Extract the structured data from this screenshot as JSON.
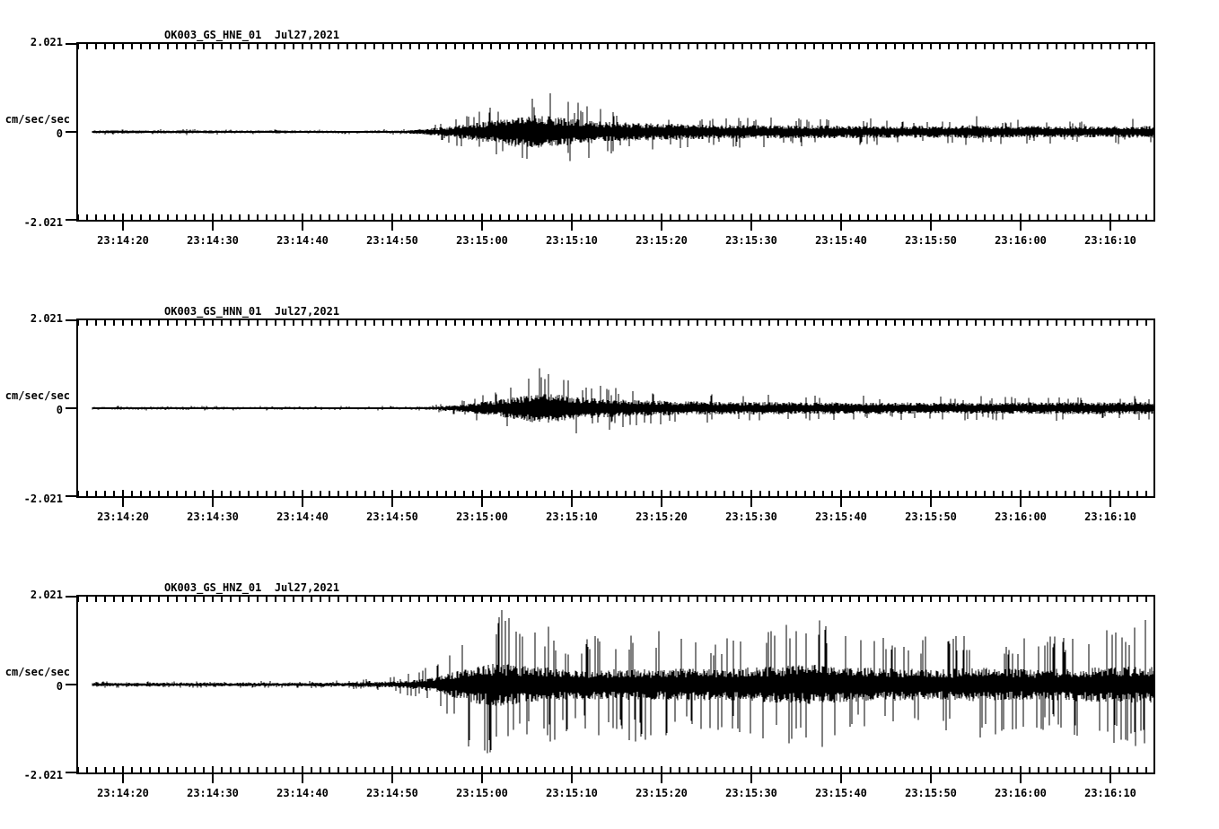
{
  "figure": {
    "background_color": "#ffffff",
    "trace_color": "#000000",
    "axis_color": "#000000"
  },
  "chart_data": [
    {
      "type": "line",
      "title": "OK003_GS_HNE_01  Jul27,2021",
      "station": "OK003",
      "network": "GS",
      "channel": "HNE",
      "location": "01",
      "date_label": "Jul27,2021",
      "ylabel": "cm/sec/sec",
      "ylim": [
        -2.021,
        2.021
      ],
      "ytick_labels": {
        "max": "2.021",
        "zero": "0",
        "min": "-2.021"
      },
      "xtick_labels": [
        "23:14:20",
        "23:14:30",
        "23:14:40",
        "23:14:50",
        "23:15:00",
        "23:15:10",
        "23:15:20",
        "23:15:30",
        "23:15:40",
        "23:15:50",
        "23:16:00",
        "23:16:10"
      ],
      "x_seconds_per_major_tick": 10,
      "grid": false,
      "legend": "none",
      "seed": 7,
      "spike_density": 0.07,
      "envelope_note": "points = [seconds after 23:14:15, typical half-amplitude cm/sec/sec, peak half-amplitude cm/sec/sec]",
      "envelope_points": [
        [
          1.6,
          0.03,
          0.07
        ],
        [
          15,
          0.03,
          0.07
        ],
        [
          22,
          0.028,
          0.06
        ],
        [
          28,
          0.024,
          0.05
        ],
        [
          33,
          0.025,
          0.06
        ],
        [
          36,
          0.03,
          0.07
        ],
        [
          38,
          0.05,
          0.11
        ],
        [
          40,
          0.08,
          0.18
        ],
        [
          42,
          0.12,
          0.3
        ],
        [
          44,
          0.17,
          0.45
        ],
        [
          46,
          0.22,
          0.55
        ],
        [
          48,
          0.27,
          0.72
        ],
        [
          50,
          0.32,
          0.88
        ],
        [
          51.5,
          0.34,
          0.97
        ],
        [
          53,
          0.3,
          0.85
        ],
        [
          55,
          0.26,
          0.7
        ],
        [
          57,
          0.23,
          0.6
        ],
        [
          59,
          0.2,
          0.52
        ],
        [
          62,
          0.18,
          0.46
        ],
        [
          66,
          0.16,
          0.4
        ],
        [
          72,
          0.14,
          0.36
        ],
        [
          80,
          0.13,
          0.33
        ],
        [
          90,
          0.12,
          0.3
        ],
        [
          98,
          0.12,
          0.3
        ],
        [
          100,
          0.14,
          0.38
        ],
        [
          102,
          0.12,
          0.3
        ],
        [
          108,
          0.11,
          0.27
        ],
        [
          114,
          0.11,
          0.28
        ],
        [
          120,
          0.12,
          0.3
        ]
      ]
    },
    {
      "type": "line",
      "title": "OK003_GS_HNN_01  Jul27,2021",
      "station": "OK003",
      "network": "GS",
      "channel": "HNN",
      "location": "01",
      "date_label": "Jul27,2021",
      "ylabel": "cm/sec/sec",
      "ylim": [
        -2.021,
        2.021
      ],
      "ytick_labels": {
        "max": "2.021",
        "zero": "0",
        "min": "-2.021"
      },
      "xtick_labels": [
        "23:14:20",
        "23:14:30",
        "23:14:40",
        "23:14:50",
        "23:15:00",
        "23:15:10",
        "23:15:20",
        "23:15:30",
        "23:15:40",
        "23:15:50",
        "23:16:00",
        "23:16:10"
      ],
      "x_seconds_per_major_tick": 10,
      "grid": false,
      "legend": "none",
      "seed": 13,
      "spike_density": 0.07,
      "envelope_note": "points = [seconds after 23:14:15, typical half-amplitude cm/sec/sec, peak half-amplitude cm/sec/sec]",
      "envelope_points": [
        [
          1.6,
          0.025,
          0.055
        ],
        [
          15,
          0.025,
          0.055
        ],
        [
          28,
          0.022,
          0.05
        ],
        [
          36,
          0.02,
          0.05
        ],
        [
          39,
          0.03,
          0.08
        ],
        [
          42,
          0.06,
          0.15
        ],
        [
          44,
          0.1,
          0.26
        ],
        [
          46,
          0.15,
          0.4
        ],
        [
          48,
          0.2,
          0.55
        ],
        [
          50,
          0.26,
          0.85
        ],
        [
          51.5,
          0.3,
          1.08
        ],
        [
          53,
          0.28,
          0.92
        ],
        [
          55,
          0.24,
          0.72
        ],
        [
          57,
          0.2,
          0.56
        ],
        [
          60,
          0.17,
          0.46
        ],
        [
          64,
          0.15,
          0.4
        ],
        [
          70,
          0.13,
          0.34
        ],
        [
          80,
          0.12,
          0.3
        ],
        [
          92,
          0.11,
          0.27
        ],
        [
          102,
          0.11,
          0.28
        ],
        [
          110,
          0.12,
          0.3
        ],
        [
          120,
          0.12,
          0.31
        ]
      ]
    },
    {
      "type": "line",
      "title": "OK003_GS_HNZ_01  Jul27,2021",
      "station": "OK003",
      "network": "GS",
      "channel": "HNZ",
      "location": "01",
      "date_label": "Jul27,2021",
      "ylabel": "cm/sec/sec",
      "ylim": [
        -2.021,
        2.021
      ],
      "ytick_labels": {
        "max": "2.021",
        "zero": "0",
        "min": "-2.021"
      },
      "xtick_labels": [
        "23:14:20",
        "23:14:30",
        "23:14:40",
        "23:14:50",
        "23:15:00",
        "23:15:10",
        "23:15:20",
        "23:15:30",
        "23:15:40",
        "23:15:50",
        "23:16:00",
        "23:16:10"
      ],
      "x_seconds_per_major_tick": 10,
      "grid": false,
      "legend": "none",
      "seed": 42,
      "spike_density": 0.13,
      "envelope_note": "points = [seconds after 23:14:15, typical half-amplitude cm/sec/sec, peak half-amplitude cm/sec/sec]",
      "envelope_points": [
        [
          1.6,
          0.035,
          0.075
        ],
        [
          15,
          0.035,
          0.075
        ],
        [
          25,
          0.035,
          0.08
        ],
        [
          30,
          0.04,
          0.1
        ],
        [
          33,
          0.05,
          0.13
        ],
        [
          36,
          0.07,
          0.2
        ],
        [
          38,
          0.1,
          0.32
        ],
        [
          40,
          0.16,
          0.55
        ],
        [
          42,
          0.26,
          1.0
        ],
        [
          44,
          0.36,
          1.55
        ],
        [
          45.5,
          0.4,
          1.8
        ],
        [
          47,
          0.42,
          1.78
        ],
        [
          49,
          0.38,
          1.35
        ],
        [
          51,
          0.35,
          1.2
        ],
        [
          52.5,
          0.34,
          1.42
        ],
        [
          54,
          0.31,
          1.05
        ],
        [
          57,
          0.29,
          1.15
        ],
        [
          60,
          0.3,
          1.25
        ],
        [
          63,
          0.3,
          1.3
        ],
        [
          65.5,
          0.31,
          1.35
        ],
        [
          68,
          0.32,
          1.15
        ],
        [
          71,
          0.3,
          1.05
        ],
        [
          74,
          0.33,
          1.15
        ],
        [
          77,
          0.36,
          1.3
        ],
        [
          80,
          0.38,
          1.45
        ],
        [
          82,
          0.4,
          1.9
        ],
        [
          84,
          0.36,
          1.2
        ],
        [
          87,
          0.33,
          1.05
        ],
        [
          90,
          0.32,
          1.1
        ],
        [
          92,
          0.32,
          1.25
        ],
        [
          95,
          0.3,
          1.05
        ],
        [
          98,
          0.31,
          1.1
        ],
        [
          100,
          0.33,
          1.3
        ],
        [
          103,
          0.32,
          1.15
        ],
        [
          106,
          0.3,
          1.05
        ],
        [
          109,
          0.31,
          1.1
        ],
        [
          112,
          0.33,
          1.2
        ],
        [
          115,
          0.34,
          1.3
        ],
        [
          118,
          0.36,
          1.45
        ],
        [
          120,
          0.38,
          1.55
        ]
      ]
    }
  ]
}
